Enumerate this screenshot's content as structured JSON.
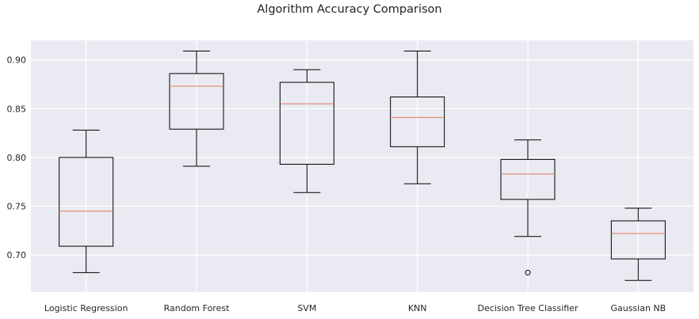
{
  "chart_data": {
    "type": "boxplot",
    "title": "Algorithm Accuracy Comparison",
    "xlabel": "",
    "ylabel": "",
    "ylim": [
      0.662,
      0.92
    ],
    "yticks": [
      0.7,
      0.75,
      0.8,
      0.85,
      0.9
    ],
    "ytick_labels": [
      "0.70",
      "0.75",
      "0.80",
      "0.85",
      "0.90"
    ],
    "grid": true,
    "colors": {
      "background": "#eaeaf2",
      "grid": "#ffffff",
      "box": "#000000",
      "median": "#e07b5a"
    },
    "categories": [
      "Logistic Regression",
      "Random Forest",
      "SVM",
      "KNN",
      "Decision Tree Classifier",
      "Gaussian NB"
    ],
    "boxes": [
      {
        "label": "Logistic Regression",
        "whisker_low": 0.682,
        "q1": 0.709,
        "median": 0.745,
        "q3": 0.8,
        "whisker_high": 0.828,
        "outliers": []
      },
      {
        "label": "Random Forest",
        "whisker_low": 0.791,
        "q1": 0.829,
        "median": 0.873,
        "q3": 0.886,
        "whisker_high": 0.909,
        "outliers": []
      },
      {
        "label": "SVM",
        "whisker_low": 0.764,
        "q1": 0.793,
        "median": 0.855,
        "q3": 0.877,
        "whisker_high": 0.89,
        "outliers": []
      },
      {
        "label": "KNN",
        "whisker_low": 0.773,
        "q1": 0.811,
        "median": 0.841,
        "q3": 0.862,
        "whisker_high": 0.909,
        "outliers": []
      },
      {
        "label": "Decision Tree Classifier",
        "whisker_low": 0.719,
        "q1": 0.757,
        "median": 0.783,
        "q3": 0.798,
        "whisker_high": 0.818,
        "outliers": [
          0.682
        ]
      },
      {
        "label": "Gaussian NB",
        "whisker_low": 0.674,
        "q1": 0.696,
        "median": 0.722,
        "q3": 0.735,
        "whisker_high": 0.748,
        "outliers": []
      }
    ]
  }
}
